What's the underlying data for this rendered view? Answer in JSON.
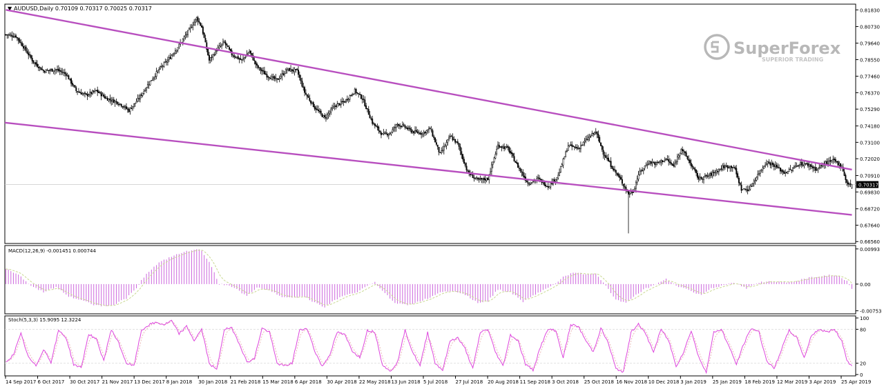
{
  "header": {
    "symbol_line": "AUDUSD,Daily  0.70109 0.70317 0.70025 0.70317"
  },
  "watermark": {
    "brand": "SuperForex",
    "tagline": "SUPERIOR TRADING",
    "color": "#b8b8b8"
  },
  "colors": {
    "background": "#ffffff",
    "frame": "#000000",
    "trendline": "#b84fbf",
    "macd_hist": "#cc66dd",
    "macd_signal": "#c8d890",
    "stoch_main": "#dd44dd",
    "stoch_signal": "#e8b0b0",
    "level_line": "#d8d8d8",
    "price_label_bg": "#000000",
    "price_label_text": "#ffffff"
  },
  "chart_data": [
    {
      "type": "candlestick",
      "panel": "main",
      "title": "AUDUSD,Daily",
      "ohlc_last": {
        "open": 0.70109,
        "high": 0.70317,
        "low": 0.70025,
        "close": 0.70317
      },
      "current_price_label": "0.70317",
      "current_price": 0.70317,
      "ylim": [
        0.6648,
        0.8189
      ],
      "y_ticks": [
        "0.81830",
        "0.80730",
        "0.79640",
        "0.78550",
        "0.77460",
        "0.76370",
        "0.75290",
        "0.74180",
        "0.73100",
        "0.72020",
        "0.70910",
        "0.69830",
        "0.68720",
        "0.67640",
        "0.66560"
      ],
      "x_ticks": [
        "14 Sep 2017",
        "6 Oct 2017",
        "30 Oct 2017",
        "21 Nov 2017",
        "13 Dec 2017",
        "8 Jan 2018",
        "30 Jan 2018",
        "21 Feb 2018",
        "15 Mar 2018",
        "6 Apr 2018",
        "30 Apr 2018",
        "22 May 2018",
        "13 Jun 2018",
        "5 Jul 2018",
        "27 Jul 2018",
        "20 Aug 2018",
        "11 Sep 2018",
        "3 Oct 2018",
        "25 Oct 2018",
        "16 Nov 2018",
        "10 Dec 2018",
        "3 Jan 2019",
        "25 Jan 2019",
        "18 Feb 2019",
        "12 Mar 2019",
        "3 Apr 2019",
        "25 Apr 2019"
      ],
      "approx_close_path": [
        [
          0,
          0.802
        ],
        [
          8,
          0.801
        ],
        [
          14,
          0.794
        ],
        [
          22,
          0.784
        ],
        [
          30,
          0.778
        ],
        [
          40,
          0.779
        ],
        [
          48,
          0.776
        ],
        [
          56,
          0.765
        ],
        [
          64,
          0.762
        ],
        [
          72,
          0.765
        ],
        [
          80,
          0.76
        ],
        [
          90,
          0.757
        ],
        [
          98,
          0.752
        ],
        [
          106,
          0.76
        ],
        [
          114,
          0.77
        ],
        [
          122,
          0.779
        ],
        [
          130,
          0.786
        ],
        [
          138,
          0.795
        ],
        [
          146,
          0.805
        ],
        [
          152,
          0.813
        ],
        [
          156,
          0.807
        ],
        [
          162,
          0.785
        ],
        [
          168,
          0.792
        ],
        [
          174,
          0.797
        ],
        [
          180,
          0.789
        ],
        [
          188,
          0.785
        ],
        [
          194,
          0.791
        ],
        [
          200,
          0.781
        ],
        [
          208,
          0.775
        ],
        [
          216,
          0.772
        ],
        [
          224,
          0.779
        ],
        [
          232,
          0.778
        ],
        [
          238,
          0.764
        ],
        [
          246,
          0.754
        ],
        [
          254,
          0.747
        ],
        [
          262,
          0.755
        ],
        [
          270,
          0.758
        ],
        [
          278,
          0.765
        ],
        [
          284,
          0.76
        ],
        [
          292,
          0.744
        ],
        [
          300,
          0.736
        ],
        [
          306,
          0.737
        ],
        [
          312,
          0.743
        ],
        [
          318,
          0.741
        ],
        [
          324,
          0.738
        ],
        [
          332,
          0.737
        ],
        [
          338,
          0.74
        ],
        [
          346,
          0.723
        ],
        [
          354,
          0.735
        ],
        [
          360,
          0.73
        ],
        [
          368,
          0.711
        ],
        [
          376,
          0.706
        ],
        [
          384,
          0.707
        ],
        [
          392,
          0.729
        ],
        [
          400,
          0.727
        ],
        [
          408,
          0.715
        ],
        [
          416,
          0.704
        ],
        [
          424,
          0.707
        ],
        [
          432,
          0.702
        ],
        [
          440,
          0.709
        ],
        [
          448,
          0.729
        ],
        [
          456,
          0.727
        ],
        [
          464,
          0.734
        ],
        [
          470,
          0.738
        ],
        [
          476,
          0.724
        ],
        [
          482,
          0.716
        ],
        [
          490,
          0.706
        ],
        [
          496,
          0.697
        ],
        [
          500,
          0.699
        ],
        [
          504,
          0.71
        ],
        [
          512,
          0.718
        ],
        [
          518,
          0.717
        ],
        [
          526,
          0.72
        ],
        [
          532,
          0.715
        ],
        [
          538,
          0.727
        ],
        [
          544,
          0.719
        ],
        [
          552,
          0.707
        ],
        [
          560,
          0.709
        ],
        [
          566,
          0.712
        ],
        [
          572,
          0.715
        ],
        [
          580,
          0.715
        ],
        [
          586,
          0.7
        ],
        [
          592,
          0.7
        ],
        [
          600,
          0.711
        ],
        [
          606,
          0.718
        ],
        [
          612,
          0.716
        ],
        [
          620,
          0.711
        ],
        [
          626,
          0.713
        ],
        [
          632,
          0.717
        ],
        [
          640,
          0.716
        ],
        [
          646,
          0.713
        ],
        [
          652,
          0.717
        ],
        [
          660,
          0.719
        ],
        [
          666,
          0.715
        ],
        [
          670,
          0.704
        ],
        [
          674,
          0.7032
        ]
      ],
      "trendline_upper": [
        [
          0,
          0.8183
        ],
        [
          674,
          0.713
        ]
      ],
      "trendline_lower": [
        [
          -8,
          0.744
        ],
        [
          674,
          0.6832
        ]
      ],
      "annotations": [
        "Descending channel: upper and lower purple trendlines"
      ]
    },
    {
      "type": "histogram",
      "panel": "macd",
      "title": "MACD(12,26,9) -0.001451 0.000744",
      "ylim": [
        -0.0078,
        0.0101
      ],
      "y_ticks": [
        "0.00993",
        "0.00",
        "-0.00753"
      ],
      "approx_values_path": [
        [
          0,
          0.0042
        ],
        [
          10,
          0.0028
        ],
        [
          20,
          -0.0005
        ],
        [
          30,
          -0.0022
        ],
        [
          40,
          -0.0008
        ],
        [
          50,
          -0.0035
        ],
        [
          60,
          -0.0045
        ],
        [
          70,
          -0.0058
        ],
        [
          78,
          -0.0062
        ],
        [
          86,
          -0.0058
        ],
        [
          96,
          -0.004
        ],
        [
          104,
          -0.001
        ],
        [
          112,
          0.003
        ],
        [
          122,
          0.006
        ],
        [
          132,
          0.0078
        ],
        [
          142,
          0.009
        ],
        [
          150,
          0.0098
        ],
        [
          156,
          0.0095
        ],
        [
          164,
          0.005
        ],
        [
          170,
          0.0
        ],
        [
          176,
          -0.0003
        ],
        [
          184,
          -0.0015
        ],
        [
          192,
          -0.0035
        ],
        [
          200,
          -0.001
        ],
        [
          210,
          -0.0018
        ],
        [
          220,
          -0.0035
        ],
        [
          230,
          -0.0038
        ],
        [
          238,
          -0.0035
        ],
        [
          246,
          -0.0052
        ],
        [
          254,
          -0.0065
        ],
        [
          262,
          -0.0045
        ],
        [
          270,
          -0.0032
        ],
        [
          278,
          -0.0025
        ],
        [
          286,
          -0.001
        ],
        [
          294,
          0.0005
        ],
        [
          300,
          -0.002
        ],
        [
          310,
          -0.0052
        ],
        [
          320,
          -0.006
        ],
        [
          330,
          -0.0048
        ],
        [
          338,
          -0.0038
        ],
        [
          346,
          -0.0022
        ],
        [
          356,
          -0.0018
        ],
        [
          366,
          -0.003
        ],
        [
          376,
          -0.0052
        ],
        [
          384,
          -0.0048
        ],
        [
          392,
          -0.0015
        ],
        [
          402,
          -0.0022
        ],
        [
          412,
          -0.005
        ],
        [
          420,
          -0.0032
        ],
        [
          428,
          -0.0018
        ],
        [
          436,
          -0.0002
        ],
        [
          446,
          0.0025
        ],
        [
          454,
          0.0032
        ],
        [
          462,
          0.0028
        ],
        [
          470,
          0.003
        ],
        [
          478,
          -0.0005
        ],
        [
          486,
          -0.0045
        ],
        [
          494,
          -0.0052
        ],
        [
          502,
          -0.003
        ],
        [
          510,
          -0.0012
        ],
        [
          518,
          0.0
        ],
        [
          526,
          0.0015
        ],
        [
          534,
          -0.0005
        ],
        [
          544,
          -0.0015
        ],
        [
          554,
          -0.0032
        ],
        [
          562,
          -0.0012
        ],
        [
          570,
          -0.0005
        ],
        [
          580,
          0.0005
        ],
        [
          590,
          -0.0012
        ],
        [
          600,
          0.0005
        ],
        [
          610,
          0.0008
        ],
        [
          620,
          0.0005
        ],
        [
          630,
          0.001
        ],
        [
          640,
          0.0018
        ],
        [
          648,
          0.002
        ],
        [
          656,
          0.0025
        ],
        [
          664,
          0.0022
        ],
        [
          670,
          0.0008
        ],
        [
          674,
          -0.0015
        ]
      ]
    },
    {
      "type": "line",
      "panel": "stochastic",
      "title": "Stoch(5,3,3) 15.9095 12.3224",
      "ylim": [
        0,
        100
      ],
      "y_ticks": [
        "100",
        "80",
        "20",
        "0"
      ],
      "levels": [
        80,
        20
      ],
      "approx_values_path": [
        [
          0,
          22
        ],
        [
          6,
          35
        ],
        [
          12,
          72
        ],
        [
          18,
          30
        ],
        [
          24,
          15
        ],
        [
          30,
          45
        ],
        [
          36,
          22
        ],
        [
          42,
          78
        ],
        [
          48,
          65
        ],
        [
          54,
          18
        ],
        [
          60,
          12
        ],
        [
          66,
          72
        ],
        [
          72,
          62
        ],
        [
          78,
          25
        ],
        [
          84,
          80
        ],
        [
          90,
          55
        ],
        [
          96,
          20
        ],
        [
          102,
          15
        ],
        [
          108,
          78
        ],
        [
          114,
          88
        ],
        [
          120,
          92
        ],
        [
          126,
          88
        ],
        [
          132,
          95
        ],
        [
          138,
          72
        ],
        [
          144,
          85
        ],
        [
          150,
          60
        ],
        [
          156,
          80
        ],
        [
          162,
          20
        ],
        [
          168,
          8
        ],
        [
          174,
          80
        ],
        [
          180,
          82
        ],
        [
          186,
          55
        ],
        [
          192,
          22
        ],
        [
          198,
          28
        ],
        [
          204,
          82
        ],
        [
          210,
          75
        ],
        [
          216,
          20
        ],
        [
          222,
          15
        ],
        [
          228,
          20
        ],
        [
          234,
          78
        ],
        [
          240,
          82
        ],
        [
          246,
          42
        ],
        [
          252,
          14
        ],
        [
          258,
          35
        ],
        [
          264,
          75
        ],
        [
          270,
          70
        ],
        [
          276,
          42
        ],
        [
          282,
          30
        ],
        [
          288,
          78
        ],
        [
          294,
          75
        ],
        [
          300,
          18
        ],
        [
          306,
          5
        ],
        [
          312,
          22
        ],
        [
          318,
          78
        ],
        [
          324,
          40
        ],
        [
          330,
          15
        ],
        [
          336,
          75
        ],
        [
          342,
          20
        ],
        [
          348,
          8
        ],
        [
          354,
          60
        ],
        [
          360,
          65
        ],
        [
          366,
          45
        ],
        [
          372,
          10
        ],
        [
          378,
          75
        ],
        [
          384,
          80
        ],
        [
          390,
          40
        ],
        [
          396,
          15
        ],
        [
          402,
          70
        ],
        [
          408,
          60
        ],
        [
          414,
          18
        ],
        [
          420,
          8
        ],
        [
          426,
          50
        ],
        [
          432,
          80
        ],
        [
          438,
          78
        ],
        [
          444,
          30
        ],
        [
          450,
          88
        ],
        [
          456,
          85
        ],
        [
          462,
          60
        ],
        [
          468,
          40
        ],
        [
          474,
          82
        ],
        [
          480,
          55
        ],
        [
          486,
          10
        ],
        [
          492,
          5
        ],
        [
          498,
          75
        ],
        [
          504,
          90
        ],
        [
          510,
          70
        ],
        [
          516,
          40
        ],
        [
          522,
          80
        ],
        [
          528,
          60
        ],
        [
          534,
          15
        ],
        [
          540,
          40
        ],
        [
          546,
          78
        ],
        [
          552,
          30
        ],
        [
          558,
          5
        ],
        [
          564,
          75
        ],
        [
          570,
          80
        ],
        [
          576,
          50
        ],
        [
          582,
          18
        ],
        [
          588,
          55
        ],
        [
          594,
          82
        ],
        [
          600,
          75
        ],
        [
          606,
          25
        ],
        [
          612,
          10
        ],
        [
          618,
          45
        ],
        [
          624,
          78
        ],
        [
          630,
          65
        ],
        [
          636,
          30
        ],
        [
          642,
          70
        ],
        [
          648,
          80
        ],
        [
          654,
          75
        ],
        [
          660,
          80
        ],
        [
          666,
          60
        ],
        [
          670,
          25
        ],
        [
          674,
          15
        ]
      ]
    }
  ]
}
